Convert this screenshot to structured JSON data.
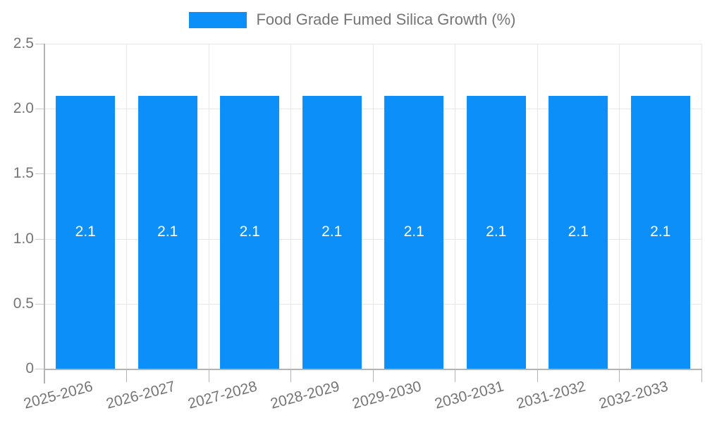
{
  "legend": {
    "label": "Food Grade Fumed Silica Growth (%)",
    "swatch_color": "#0c8ff8"
  },
  "chart_data": {
    "type": "bar",
    "title": "Food Grade Fumed Silica Growth (%)",
    "categories": [
      "2025-2026",
      "2026-2027",
      "2027-2028",
      "2028-2029",
      "2029-2030",
      "2030-2031",
      "2031-2032",
      "2032-2033"
    ],
    "values": [
      2.1,
      2.1,
      2.1,
      2.1,
      2.1,
      2.1,
      2.1,
      2.1
    ],
    "bar_labels": [
      "2.1",
      "2.1",
      "2.1",
      "2.1",
      "2.1",
      "2.1",
      "2.1",
      "2.1"
    ],
    "xlabel": "",
    "ylabel": "",
    "ylim": [
      0,
      2.5
    ],
    "yticks": [
      0,
      0.5,
      1.0,
      1.5,
      2.0,
      2.5
    ],
    "ytick_labels": [
      "0",
      "0.5",
      "1.0",
      "1.5",
      "2.0",
      "2.5"
    ],
    "grid": true,
    "legend_position": "top-center",
    "x_label_rotation_deg": -15,
    "colors": {
      "bar": "#0c8ff8",
      "bar_label": "#ffffff",
      "text": "#757575",
      "grid": "#e7e7e7",
      "axis": "#b3b3b3",
      "background": "#ffffff"
    }
  }
}
